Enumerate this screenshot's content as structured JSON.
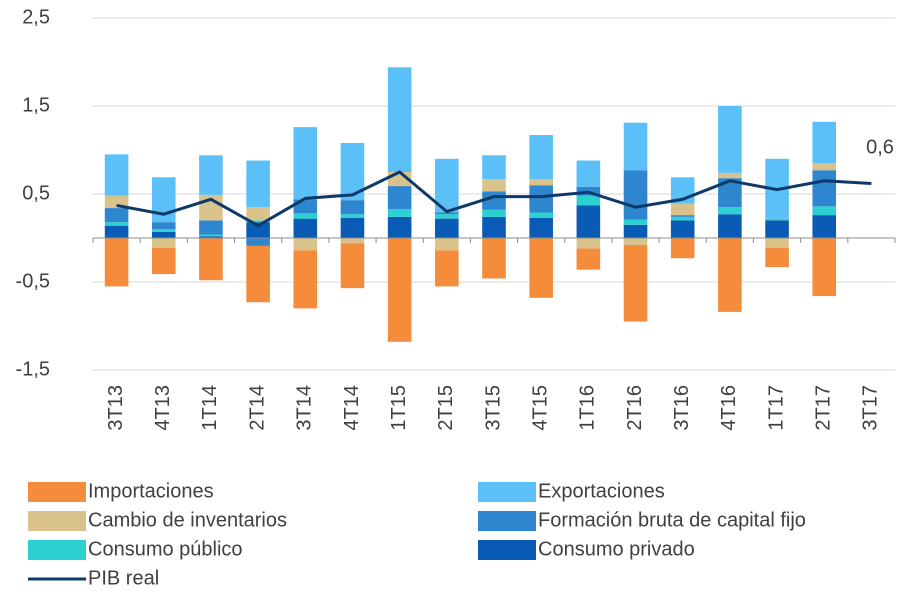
{
  "chart_data": {
    "type": "bar",
    "categories": [
      "3T13",
      "4T13",
      "1T14",
      "2T14",
      "3T14",
      "4T14",
      "1T15",
      "2T15",
      "3T15",
      "4T15",
      "1T16",
      "2T16",
      "3T16",
      "4T16",
      "1T17",
      "2T17",
      "3T17"
    ],
    "series": [
      {
        "name": "Importaciones",
        "color": "#f58c3c",
        "values": [
          -0.55,
          -0.3,
          -0.48,
          -0.64,
          -0.66,
          -0.51,
          -1.18,
          -0.41,
          -0.46,
          -0.68,
          -0.24,
          -0.87,
          -0.23,
          -0.84,
          -0.22,
          -0.66,
          null
        ]
      },
      {
        "name": "Exportaciones",
        "color": "#5bc0f8",
        "values": [
          0.47,
          0.51,
          0.45,
          0.53,
          0.82,
          0.65,
          1.19,
          0.61,
          0.27,
          0.5,
          0.3,
          0.54,
          0.3,
          0.76,
          0.68,
          0.47,
          null
        ]
      },
      {
        "name": "Cambio de inventarios",
        "color": "#d9c38a",
        "values": [
          0.14,
          -0.11,
          0.29,
          0.15,
          -0.14,
          -0.06,
          0.16,
          -0.14,
          0.14,
          0.07,
          -0.12,
          -0.08,
          0.13,
          0.06,
          -0.11,
          0.08,
          null
        ]
      },
      {
        "name": "Formación bruta de capital fijo",
        "color": "#2e86cf",
        "values": [
          0.16,
          0.08,
          0.16,
          -0.09,
          0.16,
          0.16,
          0.26,
          0.02,
          0.21,
          0.31,
          0.1,
          0.56,
          0.02,
          0.33,
          0.0,
          0.41,
          null
        ]
      },
      {
        "name": "Consumo público",
        "color": "#2dd0d0",
        "values": [
          0.04,
          0.03,
          0.02,
          0.02,
          0.06,
          0.04,
          0.09,
          0.05,
          0.08,
          0.06,
          0.11,
          0.06,
          0.04,
          0.08,
          0.02,
          0.1,
          null
        ]
      },
      {
        "name": "Consumo privado",
        "color": "#0a5bb5",
        "values": [
          0.14,
          0.07,
          0.02,
          0.18,
          0.22,
          0.23,
          0.24,
          0.22,
          0.24,
          0.23,
          0.37,
          0.15,
          0.2,
          0.27,
          0.2,
          0.26,
          null
        ]
      }
    ],
    "line": {
      "name": "PIB real",
      "color": "#0d3a6a",
      "values": [
        0.37,
        0.27,
        0.44,
        0.14,
        0.45,
        0.49,
        0.75,
        0.3,
        0.47,
        0.47,
        0.52,
        0.35,
        0.44,
        0.65,
        0.55,
        0.65,
        0.62
      ]
    },
    "annotation": "0,6",
    "ylim": [
      -1.5,
      2.5
    ],
    "yticks": [
      {
        "value": -1.5,
        "label": "-1,5"
      },
      {
        "value": -0.5,
        "label": "-0,5"
      },
      {
        "value": 0.5,
        "label": "0,5"
      },
      {
        "value": 1.5,
        "label": "1,5"
      },
      {
        "value": 2.5,
        "label": "2,5"
      }
    ],
    "grid": true
  }
}
